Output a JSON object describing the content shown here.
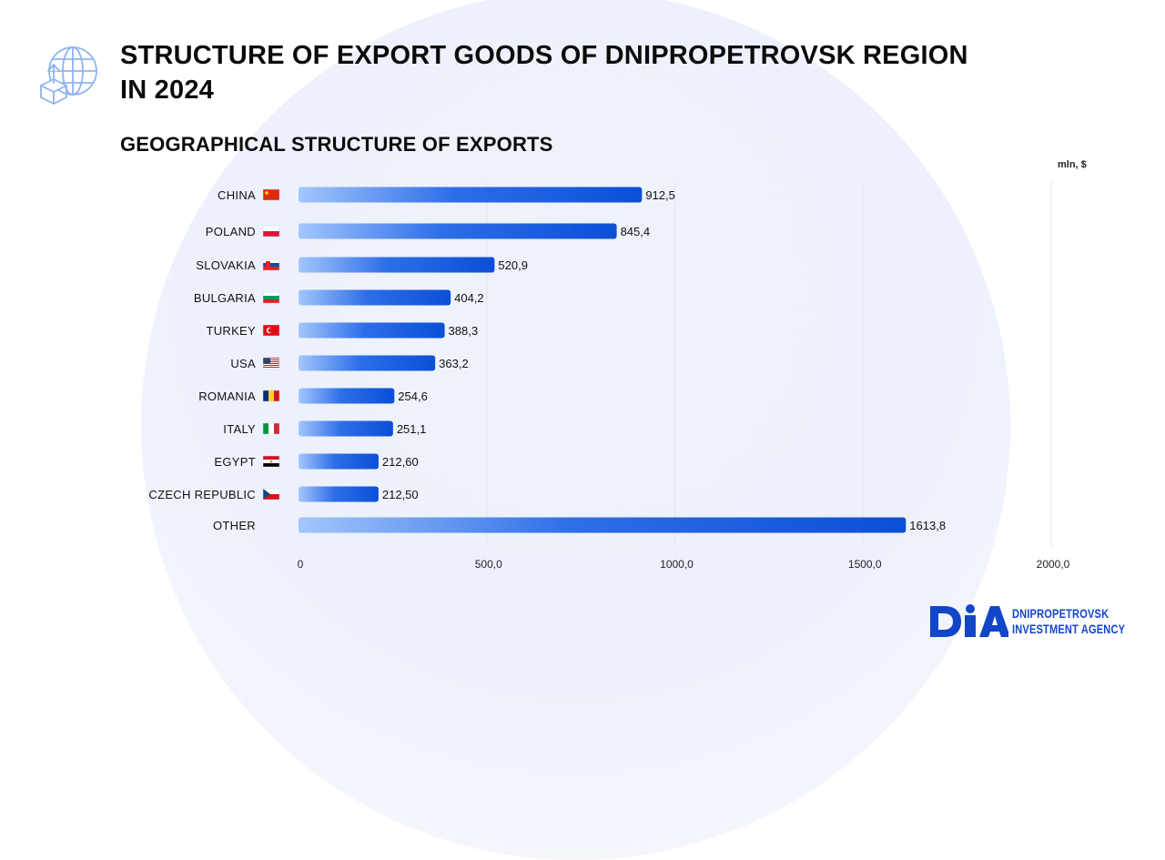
{
  "title": "STRUCTURE OF EXPORT GOODS OF DNIPROPETROVSK REGION IN 2024",
  "subtitle": "GEOGRAPHICAL STRUCTURE OF EXPORTS",
  "units": "mln, $",
  "brand": {
    "logo_text": "DIA",
    "line1": "DNIPROPETROVSK",
    "line2": "INVESTMENT AGENCY"
  },
  "colors": {
    "bar_light": "#9cc0fb",
    "bar_dark": "#0b4fd6",
    "brand": "#1246c9",
    "icon": "#8fb3f0"
  },
  "chart_data": {
    "type": "bar",
    "orientation": "horizontal",
    "categories": [
      "CHINA",
      "POLAND",
      "SLOVAKIA",
      "BULGARIA",
      "TURKEY",
      "USA",
      "ROMANIA",
      "ITALY",
      "EGYPT",
      "CZECH REPUBLIC",
      "OTHER"
    ],
    "flags": [
      "CN",
      "PL",
      "SK",
      "BG",
      "TR",
      "US",
      "RO",
      "IT",
      "EG",
      "CZ",
      ""
    ],
    "values": [
      912.5,
      845.4,
      520.9,
      404.2,
      388.3,
      363.2,
      254.6,
      251.1,
      212.6,
      212.5,
      1613.8
    ],
    "value_labels": [
      "912,5",
      "845,4",
      "520,9",
      "404,2",
      "388,3",
      "363,2",
      "254,6",
      "251,1",
      "212,60",
      "212,50",
      "1613,8"
    ],
    "xlim": [
      0,
      2000
    ],
    "xticks": [
      0,
      500,
      1000,
      1500,
      2000
    ],
    "xtick_labels": [
      "0",
      "500,0",
      "1000,0",
      "1500,0",
      "2000,0"
    ],
    "grid": true
  }
}
